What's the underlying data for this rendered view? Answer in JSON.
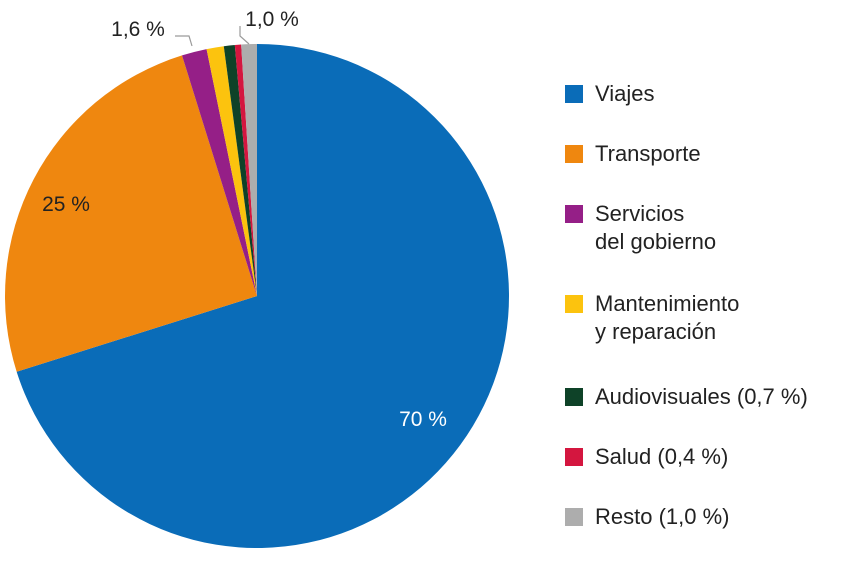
{
  "chart_data": {
    "type": "pie",
    "categories": [
      "Viajes",
      "Transporte",
      "Servicios\ndel gobierno",
      "Mantenimiento\ny reparación",
      "Audiovisuales (0,7 %)",
      "Salud (0,4 %)",
      "Resto  (1,0 %)"
    ],
    "values": [
      70,
      25,
      1.6,
      1.1,
      0.7,
      0.4,
      1.0
    ],
    "colors": [
      "#0a6cb8",
      "#ef870f",
      "#951f87",
      "#fcc30e",
      "#0e4228",
      "#d4163f",
      "#adadad"
    ],
    "slice_labels": [
      "70 %",
      "25 %",
      "1,6 %",
      "",
      "",
      "",
      "1,0 %"
    ],
    "slice_label_colors": [
      "#ffffff",
      "#222222",
      "#222222",
      "#222222",
      "#222222",
      "#222222",
      "#222222"
    ],
    "legend_position": "right",
    "start": "top, clockwise"
  }
}
